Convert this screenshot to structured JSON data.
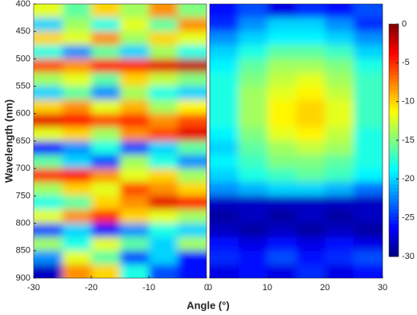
{
  "chart_data": [
    {
      "type": "heatmap",
      "ylabel": "Wavelength (nm)",
      "xlabel": "Angle (°)",
      "x": [
        -27.5,
        -22.5,
        -17.5,
        -12.5,
        -7.5,
        -2.5
      ],
      "y": [
        412.5,
        437.5,
        462.5,
        487.5,
        512.5,
        537.5,
        562.5,
        587.5,
        612.5,
        637.5,
        662.5,
        687.5,
        712.5,
        737.5,
        762.5,
        787.5,
        812.5,
        837.5,
        862.5,
        887.5
      ],
      "values": [
        [
          -12,
          -16,
          -10,
          -14,
          -8,
          -15
        ],
        [
          -20,
          -14,
          -18,
          -12,
          -16,
          -8
        ],
        [
          -10,
          -12,
          -8,
          -14,
          -10,
          -12
        ],
        [
          -18,
          -22,
          -16,
          -20,
          -14,
          -18
        ],
        [
          -6,
          -8,
          -4,
          -5,
          -3,
          -2
        ],
        [
          -14,
          -12,
          -16,
          -10,
          -13,
          -15
        ],
        [
          -20,
          -16,
          -22,
          -14,
          -18,
          -20
        ],
        [
          -10,
          -8,
          -12,
          -9,
          -14,
          -11
        ],
        [
          -3,
          -4,
          -6,
          -5,
          -8,
          -6
        ],
        [
          -12,
          -10,
          -14,
          -8,
          -6,
          -3
        ],
        [
          -26,
          -22,
          -18,
          -24,
          -20,
          -16
        ],
        [
          -16,
          -20,
          -24,
          -14,
          -18,
          -22
        ],
        [
          -5,
          -4,
          -8,
          -12,
          -10,
          -14
        ],
        [
          -14,
          -10,
          -12,
          -6,
          -8,
          -10
        ],
        [
          -18,
          -16,
          -10,
          -8,
          -3,
          -4
        ],
        [
          -12,
          -8,
          -5,
          -10,
          -12,
          -14
        ],
        [
          -24,
          -20,
          -26,
          -22,
          -18,
          -20
        ],
        [
          -14,
          -18,
          -12,
          -16,
          -20,
          -14
        ],
        [
          -22,
          -12,
          -16,
          -24,
          -20,
          -26
        ],
        [
          -28,
          -8,
          -10,
          -18,
          -24,
          -26
        ]
      ],
      "xlim": [
        -30,
        0
      ],
      "xticks": [
        -30,
        -20,
        -10,
        0
      ],
      "ylim": [
        400,
        900
      ],
      "yticks": [
        400,
        450,
        500,
        550,
        600,
        650,
        700,
        750,
        800,
        850,
        900
      ]
    },
    {
      "type": "heatmap",
      "x": [
        2.5,
        7.5,
        12.5,
        17.5,
        22.5,
        27.5
      ],
      "y": [
        412.5,
        437.5,
        462.5,
        487.5,
        512.5,
        537.5,
        562.5,
        587.5,
        612.5,
        637.5,
        662.5,
        687.5,
        712.5,
        737.5,
        762.5,
        787.5,
        812.5,
        837.5,
        862.5,
        887.5
      ],
      "values": [
        [
          -26,
          -24,
          -27,
          -25,
          -26,
          -24
        ],
        [
          -25,
          -22,
          -20,
          -20,
          -22,
          -25
        ],
        [
          -22,
          -20,
          -19,
          -19,
          -20,
          -22
        ],
        [
          -20,
          -18,
          -16,
          -16,
          -17,
          -20
        ],
        [
          -19,
          -16,
          -14,
          -14,
          -15,
          -18
        ],
        [
          -18,
          -15,
          -13,
          -12,
          -14,
          -17
        ],
        [
          -18,
          -14,
          -12,
          -11,
          -13,
          -17
        ],
        [
          -18,
          -14,
          -11,
          -10,
          -12,
          -17
        ],
        [
          -18,
          -14,
          -11,
          -10,
          -12,
          -17
        ],
        [
          -19,
          -15,
          -12,
          -11,
          -13,
          -18
        ],
        [
          -20,
          -16,
          -14,
          -13,
          -14,
          -18
        ],
        [
          -19,
          -17,
          -15,
          -15,
          -16,
          -18
        ],
        [
          -20,
          -18,
          -17,
          -16,
          -17,
          -19
        ],
        [
          -22,
          -21,
          -20,
          -20,
          -21,
          -23
        ],
        [
          -28,
          -28,
          -28,
          -28,
          -28,
          -28
        ],
        [
          -29,
          -28,
          -29,
          -28,
          -29,
          -28
        ],
        [
          -28,
          -29,
          -28,
          -29,
          -28,
          -29
        ],
        [
          -26,
          -27,
          -26,
          -27,
          -26,
          -27
        ],
        [
          -25,
          -26,
          -24,
          -26,
          -25,
          -24
        ],
        [
          -27,
          -26,
          -27,
          -25,
          -27,
          -26
        ]
      ],
      "xlim": [
        0,
        30
      ],
      "xticks": [
        0,
        10,
        20,
        30
      ],
      "ylim": [
        400,
        900
      ]
    },
    {
      "type": "colorbar",
      "colormap": "jet",
      "ylim": [
        -30,
        0
      ],
      "yticks": [
        0,
        -5,
        -10,
        -15,
        -20,
        -25,
        -30
      ]
    }
  ]
}
